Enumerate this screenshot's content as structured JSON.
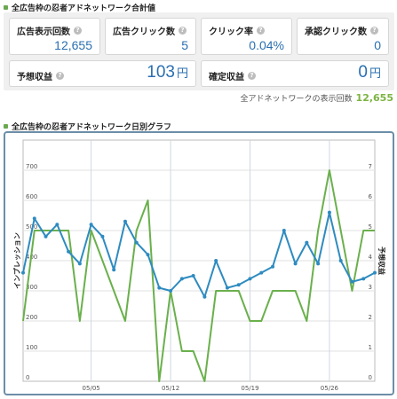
{
  "summary": {
    "title": "全広告枠の忍者アドネットワーク合計値",
    "impressions": {
      "label": "広告表示回数",
      "value": "12,655"
    },
    "clicks": {
      "label": "広告クリック数",
      "value": "5"
    },
    "ctr": {
      "label": "クリック率",
      "value": "0.04%"
    },
    "approved_clicks": {
      "label": "承認クリック数",
      "value": "0"
    },
    "estimated_revenue": {
      "label": "予想収益",
      "value": "103",
      "unit": "円"
    },
    "confirmed_revenue": {
      "label": "確定収益",
      "value": "0",
      "unit": "円"
    },
    "help_glyph": "?"
  },
  "total": {
    "label": "全アドネットワークの表示回数",
    "value": "12,655"
  },
  "graph": {
    "title": "全広告枠の忍者アドネットワーク日別グラフ"
  },
  "colors": {
    "impressions": "#2e8bc0",
    "clicks": "#6ab04c",
    "value_text": "#2a6fb0",
    "total_value": "#7cb342"
  },
  "chart_data": {
    "type": "line",
    "x": [
      "04/29",
      "04/30",
      "05/01",
      "05/02",
      "05/03",
      "05/04",
      "05/05",
      "05/06",
      "05/07",
      "05/08",
      "05/09",
      "05/10",
      "05/11",
      "05/12",
      "05/13",
      "05/14",
      "05/15",
      "05/16",
      "05/17",
      "05/18",
      "05/19",
      "05/20",
      "05/21",
      "05/22",
      "05/23",
      "05/24",
      "05/25",
      "05/26",
      "05/27",
      "05/28",
      "05/29",
      "05/30"
    ],
    "x_tick_labels": [
      "05/05",
      "05/12",
      "05/19",
      "05/26"
    ],
    "ylabel": "インプレッション",
    "y2label": "予想収益",
    "ylim": [
      0,
      800
    ],
    "y_ticks": [
      0,
      100,
      200,
      300,
      400,
      500,
      600,
      700
    ],
    "y2lim": [
      0,
      8
    ],
    "y2_ticks": [
      0,
      1,
      2,
      3,
      4,
      5,
      6,
      7
    ],
    "grid": true,
    "series": [
      {
        "axis": "left",
        "values": [
          360,
          540,
          480,
          520,
          430,
          390,
          520,
          480,
          370,
          530,
          460,
          420,
          310,
          300,
          340,
          350,
          280,
          400,
          310,
          320,
          340,
          360,
          380,
          500,
          390,
          460,
          390,
          560,
          400,
          330,
          340,
          360
        ]
      },
      {
        "axis": "right",
        "values": [
          2,
          5,
          5,
          5,
          5,
          2,
          5,
          4,
          3,
          2,
          5,
          6,
          0,
          3,
          1,
          1,
          0,
          3,
          3,
          3,
          2,
          2,
          3,
          3,
          3,
          2,
          5,
          7,
          5,
          3,
          5,
          5
        ]
      }
    ]
  }
}
